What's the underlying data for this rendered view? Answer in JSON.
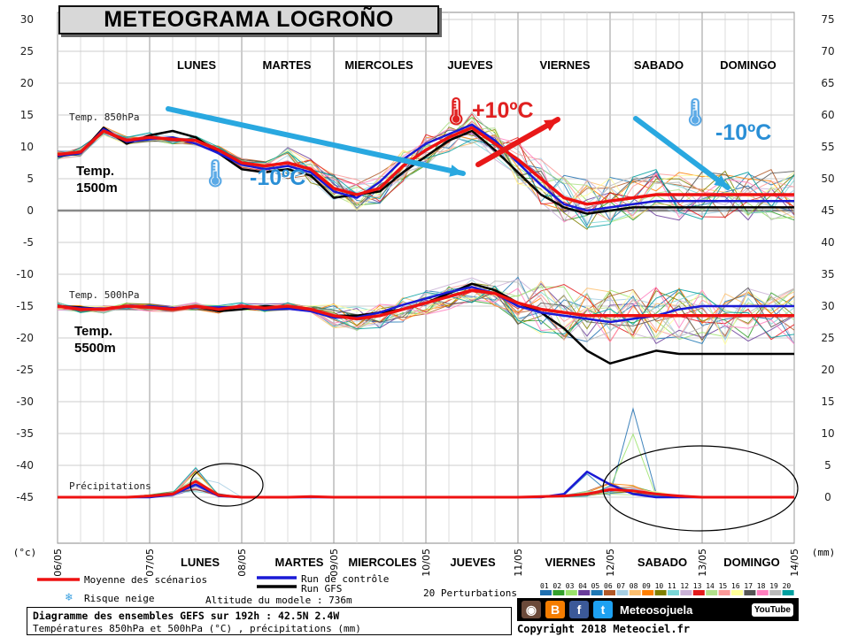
{
  "title": "METEOGRAMA LOGROÑO",
  "days_top": [
    "LUNES",
    "MARTES",
    "MIERCOLES",
    "JUEVES",
    "VIERNES",
    "SABADO",
    "DOMINGO"
  ],
  "days_bottom": [
    "LUNES",
    "MARTES",
    "MIERCOLES",
    "JUEVES",
    "VIERNES",
    "SABADO",
    "DOMINGO"
  ],
  "annotations": {
    "temp1500": "Temp.\n1500m",
    "temp5500": "Temp.\n5500m",
    "cold1": "-10ºC",
    "warm": "+10ºC",
    "cold2": "-10ºC"
  },
  "legend": {
    "mean": "Moyenne des scénarios",
    "control": "Run de contrôle",
    "gfs": "Run GFS",
    "snow": "Risque neige",
    "altitude": "Altitude du modele : 736m",
    "perturbations": "20 Perturbations",
    "pert_numbers": [
      "01",
      "02",
      "03",
      "04",
      "05",
      "06",
      "07",
      "08",
      "09",
      "10",
      "11",
      "12",
      "13",
      "14",
      "15",
      "16",
      "17",
      "18",
      "19",
      "20"
    ]
  },
  "footer": {
    "line1": "Diagramme des ensembles GEFS sur 192h : 42.5N 2.4W",
    "line2": "Températures 850hPa et 500hPa (°C) , précipitations (mm)",
    "brand": "Meteosojuela",
    "youtube": "YouTube",
    "copyright": "Copyright 2018 Meteociel.fr"
  },
  "colors": {
    "mean": "#ee1111",
    "control": "#1a1ad6",
    "gfs": "#000000",
    "arrow_cold": "#29a8e0",
    "arrow_warm": "#e81818",
    "pert_colors": [
      "#1f6fb0",
      "#33a02c",
      "#9be36b",
      "#6a3d9a",
      "#1f78b4",
      "#b15928",
      "#a6cee3",
      "#fdbf6f",
      "#ff7f00",
      "#808000",
      "#7ad6d6",
      "#cab2d6",
      "#e31a1c",
      "#b2df8a",
      "#fb9a99",
      "#ffff99",
      "#555555",
      "#ff7fbf",
      "#bbbbbb",
      "#00a0a0"
    ]
  },
  "chart_data": {
    "type": "line",
    "x_tick_labels": [
      "06/05",
      "07/05",
      "08/05",
      "09/05",
      "10/05",
      "11/05",
      "12/05",
      "13/05",
      "14/05"
    ],
    "x_unit": "(°c)",
    "y_left_ticks": [
      30,
      25,
      20,
      15,
      10,
      5,
      0,
      -5,
      -10,
      -15,
      -20,
      -25,
      -30,
      -35,
      -40,
      -45
    ],
    "y_right_ticks": [
      75,
      70,
      65,
      60,
      55,
      50,
      45,
      40,
      35,
      30,
      25,
      20,
      15,
      10,
      5,
      0
    ],
    "y_right_unit": "(mm)",
    "ylim_temp": [
      -50,
      30
    ],
    "ylim_precip": [
      0,
      75
    ],
    "panel_labels": [
      "Temp. 850hPa",
      "Temp. 500hPa",
      "Précipitations"
    ],
    "time_hours": [
      0,
      6,
      12,
      18,
      24,
      30,
      36,
      42,
      48,
      54,
      60,
      66,
      72,
      78,
      84,
      90,
      96,
      102,
      108,
      114,
      120,
      126,
      132,
      138,
      144,
      150,
      156,
      162,
      168,
      174,
      180,
      186,
      192
    ],
    "series": [
      {
        "key": "t850_mean",
        "values": [
          8.8,
          9.2,
          12.5,
          11.0,
          11.5,
          11.2,
          11.0,
          9.5,
          7.5,
          7.0,
          7.5,
          6.5,
          3.5,
          2.5,
          3.5,
          7.0,
          9.5,
          11.5,
          13.0,
          10.5,
          8.0,
          5.0,
          2.0,
          1.0,
          1.5,
          2.0,
          2.5,
          2.5,
          2.5,
          2.5,
          2.5,
          2.5,
          2.5
        ]
      },
      {
        "key": "t850_control",
        "values": [
          8.6,
          9.0,
          12.8,
          10.8,
          11.2,
          11.5,
          10.5,
          9.0,
          7.2,
          6.5,
          7.0,
          6.0,
          3.0,
          2.0,
          4.5,
          8.0,
          10.5,
          12.0,
          13.5,
          11.0,
          7.5,
          4.0,
          1.0,
          0.0,
          0.5,
          1.0,
          1.5,
          1.5,
          1.5,
          1.5,
          1.5,
          1.5,
          1.5
        ]
      },
      {
        "key": "t850_gfs",
        "values": [
          8.5,
          9.0,
          13.0,
          10.5,
          11.8,
          12.5,
          11.5,
          9.0,
          6.5,
          6.0,
          6.5,
          5.5,
          2.0,
          2.5,
          3.0,
          6.0,
          8.5,
          11.0,
          12.5,
          9.5,
          6.0,
          2.5,
          0.5,
          -0.5,
          0.0,
          0.5,
          0.5,
          0.5,
          0.5,
          0.5,
          0.5,
          0.5,
          0.5
        ]
      },
      {
        "key": "t500_mean",
        "values": [
          -15.0,
          -15.5,
          -15.5,
          -15.0,
          -15.2,
          -15.5,
          -15.0,
          -15.5,
          -15.0,
          -15.3,
          -15.0,
          -15.5,
          -16.5,
          -17.0,
          -16.5,
          -15.5,
          -14.5,
          -13.5,
          -12.5,
          -13.0,
          -14.5,
          -15.5,
          -16.0,
          -16.5,
          -16.5,
          -16.5,
          -16.5,
          -16.5,
          -16.5,
          -16.5,
          -16.5,
          -16.5,
          -16.5
        ]
      },
      {
        "key": "t500_control",
        "values": [
          -15.0,
          -15.3,
          -15.4,
          -15.1,
          -15.0,
          -15.3,
          -15.2,
          -15.2,
          -15.1,
          -15.5,
          -15.4,
          -15.8,
          -16.8,
          -16.8,
          -16.0,
          -14.8,
          -13.8,
          -12.8,
          -12.0,
          -13.0,
          -15.0,
          -16.0,
          -16.5,
          -17.0,
          -17.5,
          -17.0,
          -16.5,
          -15.5,
          -15.0,
          -15.0,
          -15.0,
          -15.0,
          -15.0
        ]
      },
      {
        "key": "t500_gfs",
        "values": [
          -15.0,
          -15.2,
          -15.5,
          -15.0,
          -15.1,
          -15.4,
          -15.0,
          -15.8,
          -15.5,
          -15.0,
          -15.2,
          -15.6,
          -16.5,
          -16.5,
          -16.0,
          -15.5,
          -14.5,
          -13.0,
          -11.5,
          -12.5,
          -14.5,
          -16.0,
          -18.5,
          -22.0,
          -24.0,
          -23.0,
          -22.0,
          -22.5,
          -22.5,
          -22.5,
          -22.5,
          -22.5,
          -22.5
        ]
      },
      {
        "key": "precip_mean",
        "values": [
          0.0,
          0.0,
          0.0,
          0.0,
          0.2,
          0.5,
          2.5,
          0.3,
          0.0,
          0.0,
          0.0,
          0.1,
          0.0,
          0.0,
          0.0,
          0.0,
          0.0,
          0.0,
          0.0,
          0.0,
          0.0,
          0.1,
          0.2,
          0.5,
          1.2,
          1.0,
          0.5,
          0.2,
          0.0,
          0.0,
          0.0,
          0.0,
          0.0
        ]
      },
      {
        "key": "precip_control",
        "values": [
          0.0,
          0.0,
          0.0,
          0.0,
          0.0,
          0.4,
          2.0,
          0.2,
          0.0,
          0.0,
          0.0,
          0.0,
          0.0,
          0.0,
          0.0,
          0.0,
          0.0,
          0.0,
          0.0,
          0.0,
          0.0,
          0.0,
          0.5,
          4.0,
          2.0,
          0.5,
          0.0,
          0.0,
          0.0,
          0.0,
          0.0,
          0.0,
          0.0
        ]
      }
    ]
  }
}
